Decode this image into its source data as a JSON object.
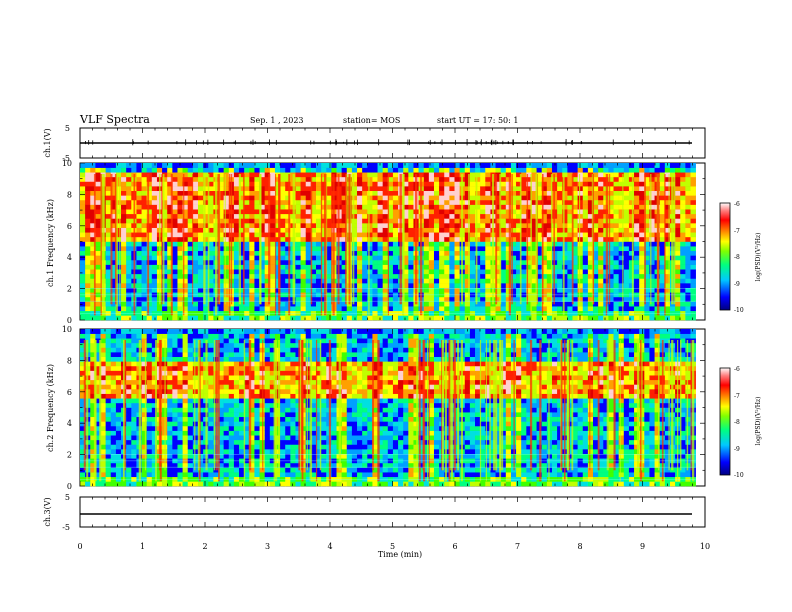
{
  "header": {
    "title": "VLF Spectra",
    "date": "Sep. 1 , 2023",
    "station": "station= MOS",
    "start": "start UT =  17: 50: 1"
  },
  "colors": {
    "colormap": [
      "#000080",
      "#0000ff",
      "#00a0ff",
      "#00e0e0",
      "#00ff80",
      "#40ff00",
      "#c0ff00",
      "#ffff00",
      "#ffa000",
      "#ff2000",
      "#e00000",
      "#ffd0d0"
    ],
    "line": "#000000"
  },
  "chart_data": [
    {
      "type": "line",
      "panel": "ch1-waveform",
      "ylabel": "ch.1(V)",
      "xlim": [
        0,
        10
      ],
      "ylim": [
        -5,
        5
      ],
      "yticks": [
        "5",
        "-5"
      ],
      "trace_level": 0,
      "trace_end": 9.85
    },
    {
      "type": "heatmap",
      "panel": "ch1-spectrogram",
      "ylabel": "ch.1 Frequency (kHz)",
      "xlim": [
        0,
        9.85
      ],
      "ylim": [
        0,
        10
      ],
      "yticks": [
        "0",
        "2",
        "4",
        "6",
        "8",
        "10"
      ],
      "energy_band_khz": [
        5,
        9.5
      ],
      "colorbar": {
        "label": "log(PSD)(V²/Hz)",
        "range": [
          -10,
          -6
        ],
        "ticks": [
          "-6",
          "-7",
          "-8",
          "-9",
          "-10"
        ]
      }
    },
    {
      "type": "heatmap",
      "panel": "ch2-spectrogram",
      "ylabel": "ch.2 Frequency (kHz)",
      "xlim": [
        0,
        9.85
      ],
      "ylim": [
        0,
        10
      ],
      "yticks": [
        "0",
        "2",
        "4",
        "6",
        "8",
        "10"
      ],
      "energy_band_khz": [
        5.5,
        8
      ],
      "colorbar": {
        "label": "log(PSD)(V²/Hz)",
        "range": [
          -10,
          -6
        ],
        "ticks": [
          "-6",
          "-7",
          "-8",
          "-9",
          "-10"
        ]
      }
    },
    {
      "type": "line",
      "panel": "ch3-waveform",
      "ylabel": "ch.3(V)",
      "xlim": [
        0,
        10
      ],
      "ylim": [
        -5,
        5
      ],
      "yticks": [
        "5",
        "-5"
      ],
      "trace_level": -1,
      "trace_end": 9.85,
      "xlabel": "Time  (min)",
      "xticks": [
        "0",
        "1",
        "2",
        "3",
        "4",
        "5",
        "6",
        "7",
        "8",
        "9",
        "10"
      ]
    }
  ]
}
